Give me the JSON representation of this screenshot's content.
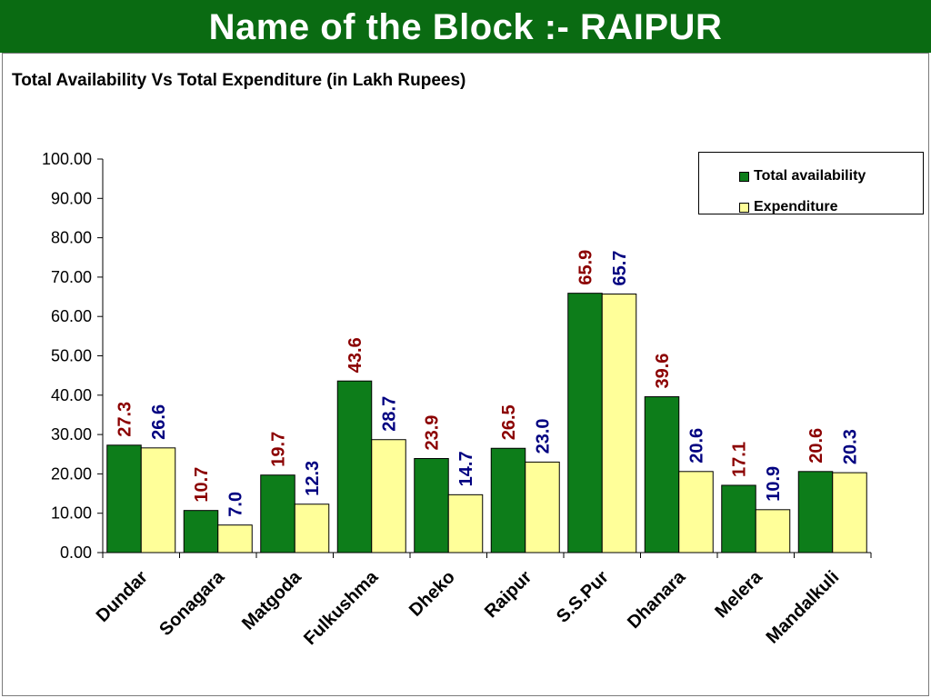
{
  "header": {
    "title": "Name of the Block :- RAIPUR"
  },
  "colors": {
    "header_bg": "#0a6b12",
    "availability": "#0d7d1a",
    "expenditure": "#ffff99",
    "availability_label": "#8b0000",
    "expenditure_label": "#000080"
  },
  "chart_data": {
    "type": "bar",
    "title": "Total Availability Vs Total Expenditure (in Lakh Rupees)",
    "xlabel": "",
    "ylabel": "",
    "ylim": [
      0,
      100
    ],
    "yticks": [
      "0.00",
      "10.00",
      "20.00",
      "30.00",
      "40.00",
      "50.00",
      "60.00",
      "70.00",
      "80.00",
      "90.00",
      "100.00"
    ],
    "grid": false,
    "legend_position": "top-right",
    "categories": [
      "Dundar",
      "Sonagara",
      "Matgoda",
      "Fulkushma",
      "Dheko",
      "Raipur",
      "S.S.Pur",
      "Dhanara",
      "Melera",
      "Mandalkuli"
    ],
    "series": [
      {
        "name": "Total availability",
        "values": [
          27.3,
          10.7,
          19.7,
          43.6,
          23.9,
          26.5,
          65.9,
          39.6,
          17.1,
          20.6
        ],
        "labels": [
          "27.3",
          "10.7",
          "19.7",
          "43.6",
          "23.9",
          "26.5",
          "65.9",
          "39.6",
          "17.1",
          "20.6"
        ]
      },
      {
        "name": "Expenditure",
        "values": [
          26.6,
          7.0,
          12.3,
          28.7,
          14.7,
          23.0,
          65.7,
          20.6,
          10.9,
          20.3
        ],
        "labels": [
          "26.6",
          "7.0",
          "12.3",
          "28.7",
          "14.7",
          "23.0",
          "65.7",
          "20.6",
          "10.9",
          "20.3"
        ]
      }
    ]
  }
}
